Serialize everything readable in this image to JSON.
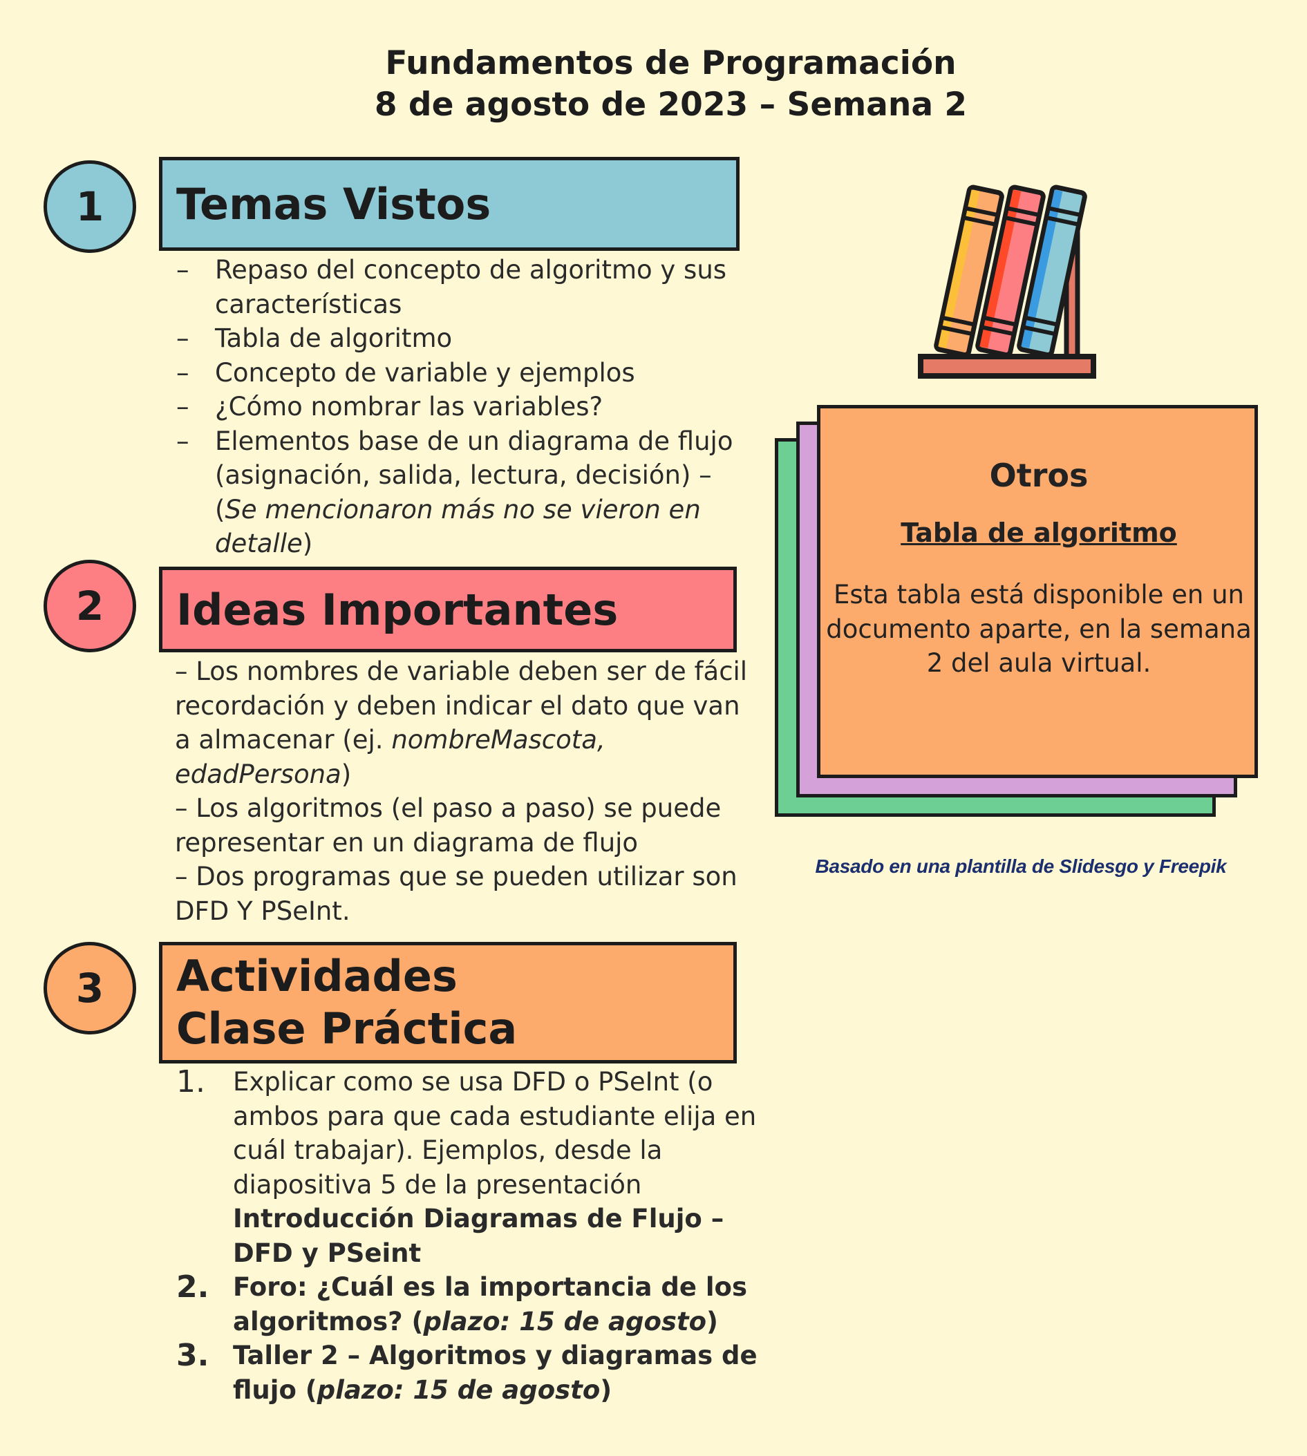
{
  "header": {
    "title_line1": "Fundamentos de Programación",
    "title_line2": "8 de agosto de 2023 – Semana 2"
  },
  "sections": [
    {
      "number": "1",
      "title": "Temas Vistos",
      "color": "#8ecad5",
      "items": [
        "Repaso del concepto de algoritmo y sus características",
        "Tabla de algoritmo",
        "Concepto de variable y ejemplos",
        "¿Cómo nombrar las variables?",
        "Elementos base de un diagrama de flujo  (asignación, salida, lectura, decisión) – (",
        "Se mencionaron más no se vieron en detalle",
        ")"
      ]
    },
    {
      "number": "2",
      "title": "Ideas Importantes",
      "color": "#fd7f84",
      "lines": [
        "– Los nombres de variable deben ser de fácil recordación y deben indicar el dato que van a almacenar (ej. ",
        "nombreMascota, edadPersona",
        ")",
        "– Los algoritmos (el paso a paso) se puede representar en un diagrama de flujo",
        "– Dos programas que se pueden utilizar son DFD Y PSeInt."
      ]
    },
    {
      "number": "3",
      "title": "Actividades Clase Práctica",
      "color": "#fdab6c",
      "activities": [
        {
          "num": "1.",
          "text": "Explicar como se usa DFD o PSeInt (o ambos para que cada estudiante elija en cuál trabajar). Ejemplos, desde la diapositiva 5 de la presentación ",
          "bold": "Introducción Diagramas de Flujo – DFD y PSeint"
        },
        {
          "num": "2.",
          "text": "Foro: ¿Cuál es la importancia de los algoritmos? (",
          "italic": "plazo: 15 de agosto",
          "end": ")"
        },
        {
          "num": "3.",
          "text": "Taller 2 – Algoritmos y diagramas de flujo (",
          "italic": "plazo: 15 de agosto",
          "end": ")"
        }
      ]
    }
  ],
  "card": {
    "title": "Otros",
    "subtitle": "Tabla de algoritmo",
    "body": "Esta tabla está disponible en un documento aparte, en la semana 2 del aula virtual.",
    "colors": {
      "front": "#fdab6c",
      "middle": "#d4a2d8",
      "back": "#6dcf94"
    }
  },
  "illustration": {
    "icon": "books-on-shelf-icon"
  },
  "credit": "Basado en una plantilla de Slidesgo y Freepik"
}
